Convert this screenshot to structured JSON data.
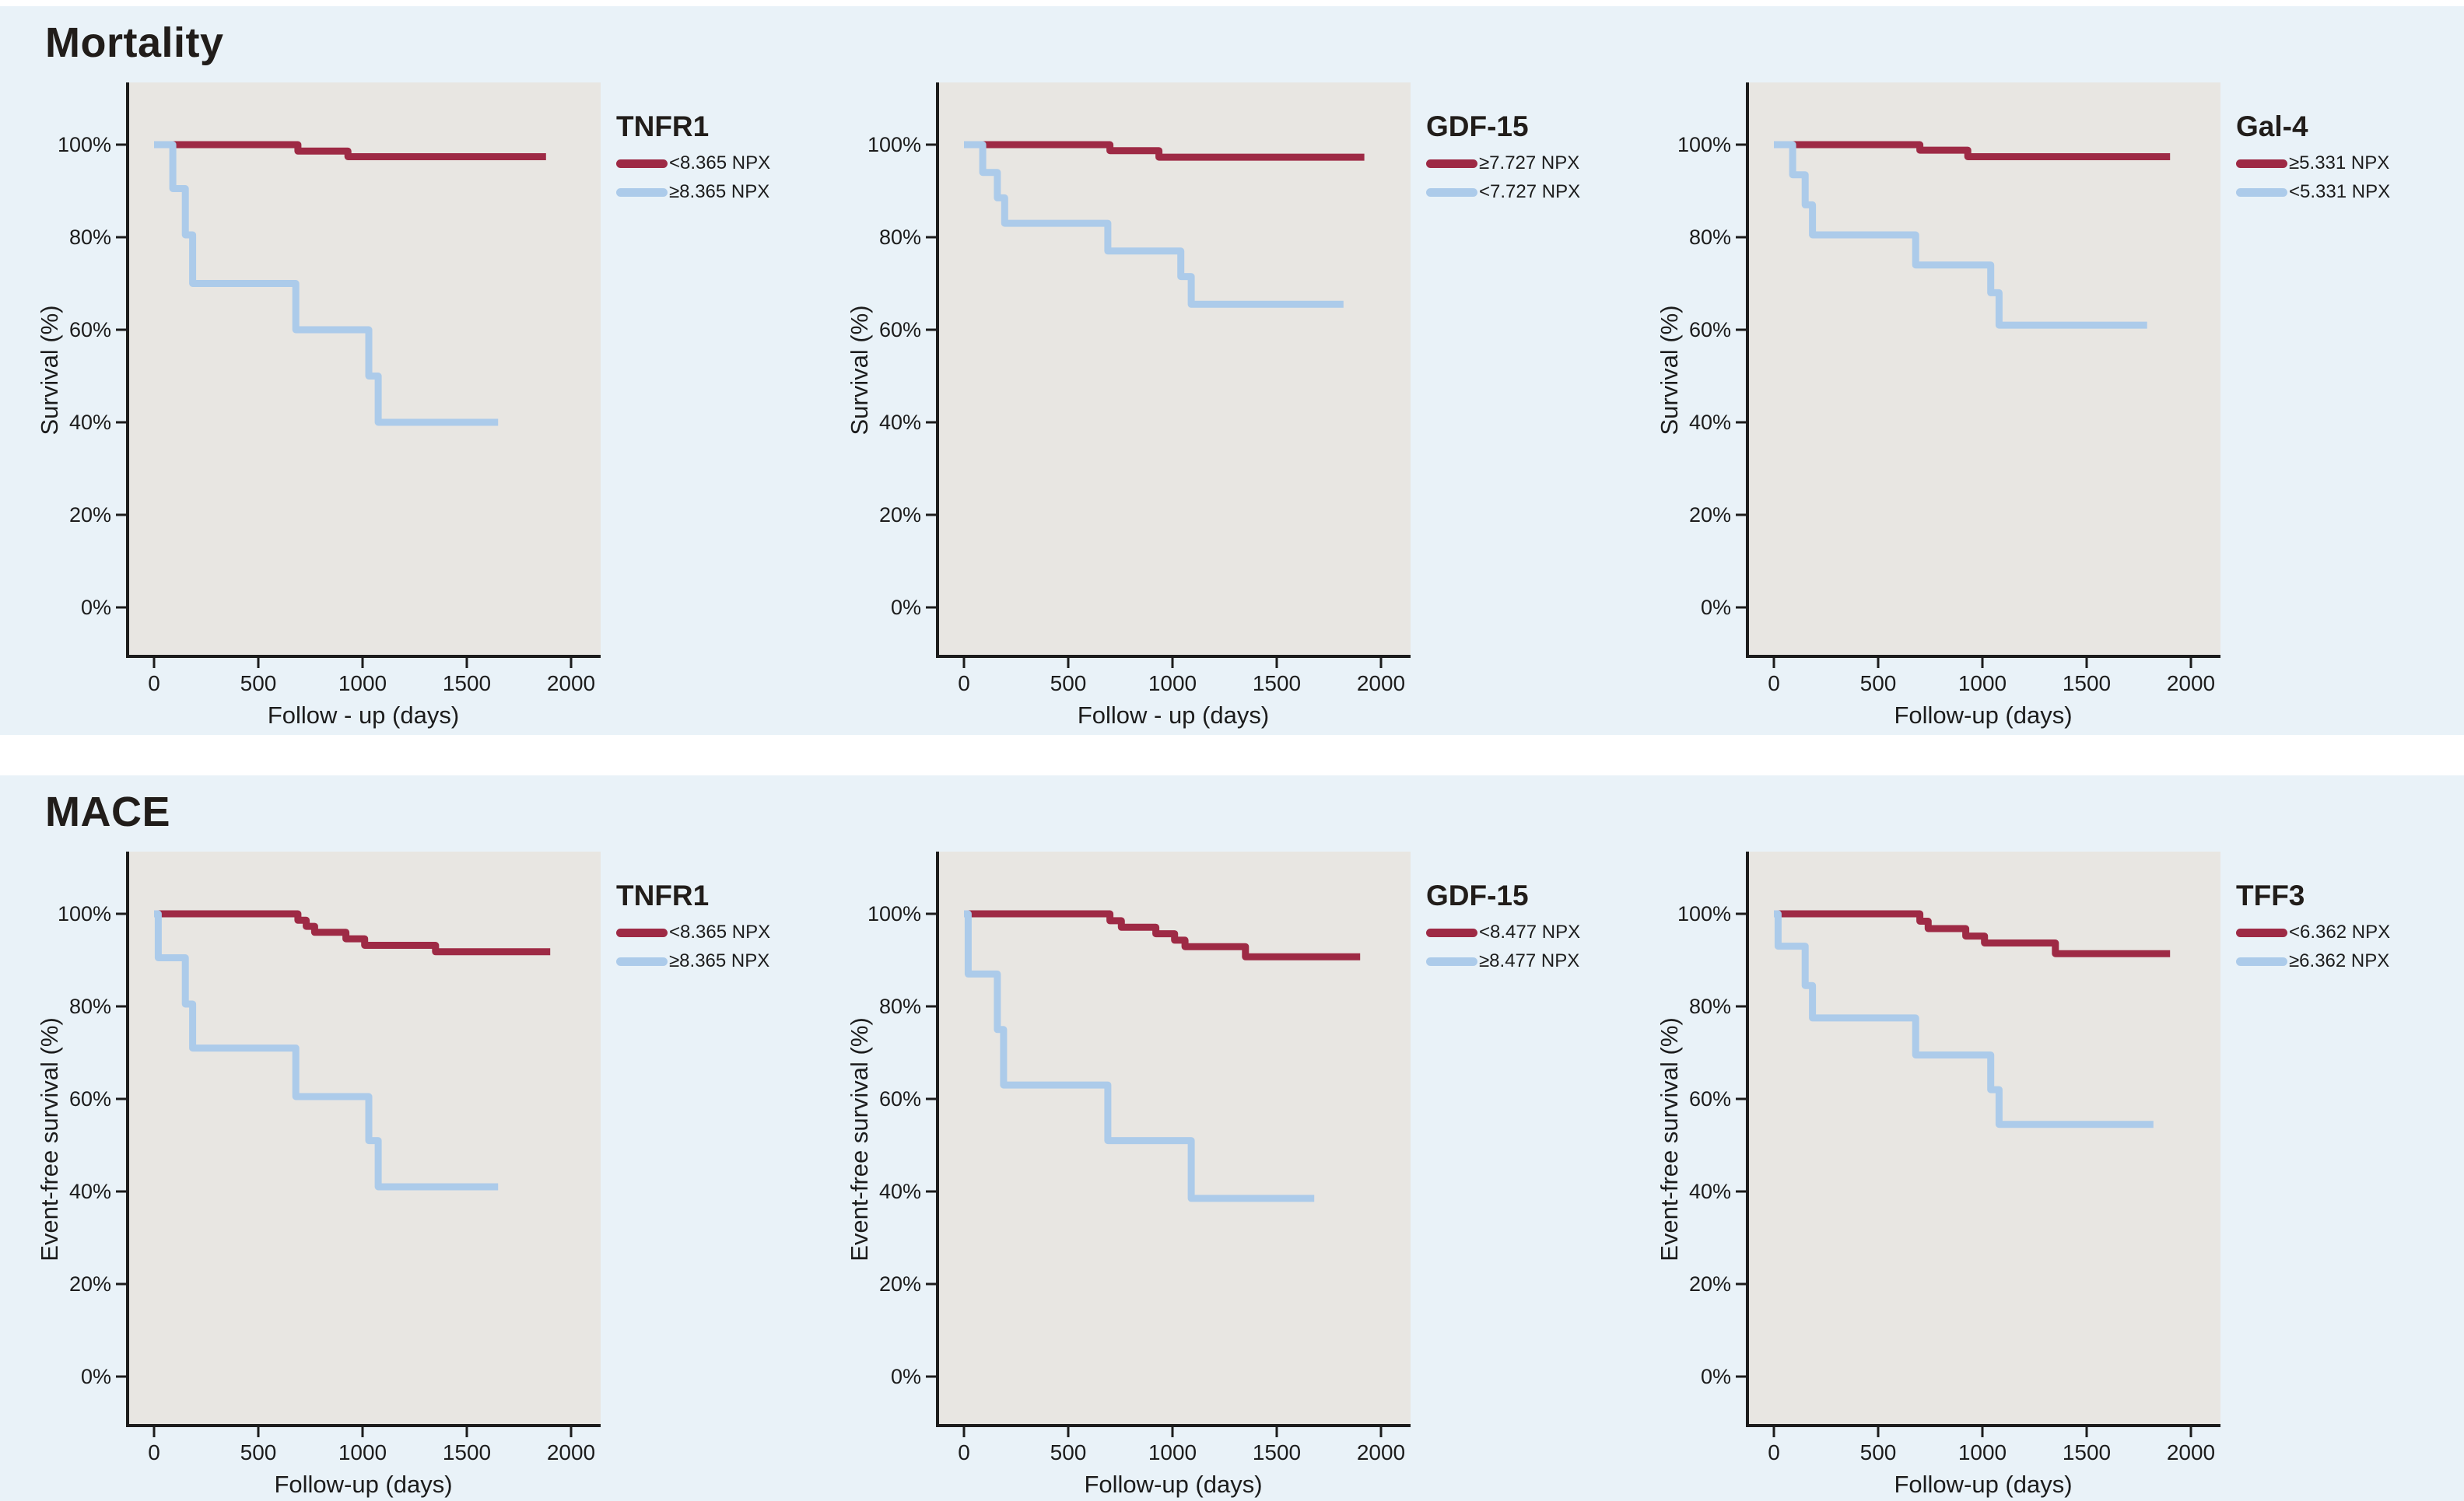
{
  "page": {
    "background": "#ffffff",
    "panel_background": "#e9f2f8"
  },
  "colors": {
    "red": "#9e2a45",
    "blue": "#accbea",
    "plot_background": "#e8e6e2",
    "axis": "#1c1c1c",
    "text": "#1c1c1c"
  },
  "sections": [
    {
      "title": "Mortality",
      "ylabel": "Survival (%)",
      "chart_ids": [
        0,
        1,
        2
      ]
    },
    {
      "title": "MACE",
      "ylabel": "Event-free survival (%)",
      "chart_ids": [
        3,
        4,
        5
      ]
    }
  ],
  "chart_data": [
    {
      "type": "line",
      "subtype": "kaplan-meier-step",
      "section": "Mortality",
      "title": "TNFR1",
      "xlabel": "Follow - up (days)",
      "ylabel": "Survival (%)",
      "xlim": [
        0,
        2000
      ],
      "ylim": [
        0,
        100
      ],
      "grid": false,
      "legend_position": "top-right",
      "x_ticks": [
        "0",
        "500",
        "1000",
        "1500",
        "2000"
      ],
      "y_ticks": [
        {
          "value": 100,
          "label": "100%"
        },
        {
          "value": 80,
          "label": "80%"
        },
        {
          "value": 60,
          "label": "60%"
        },
        {
          "value": 40,
          "label": "40%"
        },
        {
          "value": 20,
          "label": "20%"
        },
        {
          "value": 0,
          "label": "0%"
        }
      ],
      "series": [
        {
          "name": "<8.365 NPX",
          "color_key": "red",
          "points": [
            [
              0,
              100
            ],
            [
              690,
              100
            ],
            [
              690,
              98.6
            ],
            [
              930,
              98.6
            ],
            [
              930,
              97.4
            ],
            [
              1880,
              97.4
            ]
          ]
        },
        {
          "name": "≥8.365 NPX",
          "color_key": "blue",
          "points": [
            [
              0,
              100
            ],
            [
              90,
              100
            ],
            [
              90,
              90.5
            ],
            [
              150,
              90.5
            ],
            [
              150,
              80.5
            ],
            [
              185,
              80.5
            ],
            [
              185,
              70
            ],
            [
              680,
              70
            ],
            [
              680,
              60
            ],
            [
              1030,
              60
            ],
            [
              1030,
              50
            ],
            [
              1075,
              50
            ],
            [
              1075,
              40
            ],
            [
              1650,
              40
            ]
          ]
        }
      ]
    },
    {
      "type": "line",
      "subtype": "kaplan-meier-step",
      "section": "Mortality",
      "title": "GDF-15",
      "xlabel": "Follow - up (days)",
      "ylabel": "Survival (%)",
      "xlim": [
        0,
        2000
      ],
      "ylim": [
        0,
        100
      ],
      "grid": false,
      "legend_position": "top-right",
      "x_ticks": [
        "0",
        "500",
        "1000",
        "1500",
        "2000"
      ],
      "y_ticks": [
        {
          "value": 100,
          "label": "100%"
        },
        {
          "value": 80,
          "label": "80%"
        },
        {
          "value": 60,
          "label": "60%"
        },
        {
          "value": 40,
          "label": "40%"
        },
        {
          "value": 20,
          "label": "20%"
        },
        {
          "value": 0,
          "label": "0%"
        }
      ],
      "series": [
        {
          "name": "≥7.727 NPX",
          "color_key": "red",
          "points": [
            [
              0,
              100
            ],
            [
              700,
              100
            ],
            [
              700,
              98.7
            ],
            [
              935,
              98.7
            ],
            [
              935,
              97.3
            ],
            [
              1920,
              97.3
            ]
          ]
        },
        {
          "name": "<7.727 NPX",
          "color_key": "blue",
          "points": [
            [
              0,
              100
            ],
            [
              90,
              100
            ],
            [
              90,
              94
            ],
            [
              160,
              94
            ],
            [
              160,
              88.5
            ],
            [
              195,
              88.5
            ],
            [
              195,
              83
            ],
            [
              690,
              83
            ],
            [
              690,
              77
            ],
            [
              1040,
              77
            ],
            [
              1040,
              71.5
            ],
            [
              1090,
              71.5
            ],
            [
              1090,
              65.5
            ],
            [
              1820,
              65.5
            ]
          ]
        }
      ]
    },
    {
      "type": "line",
      "subtype": "kaplan-meier-step",
      "section": "Mortality",
      "title": "Gal-4",
      "xlabel": "Follow-up (days)",
      "ylabel": "Survival (%)",
      "xlim": [
        0,
        2000
      ],
      "ylim": [
        0,
        100
      ],
      "grid": false,
      "legend_position": "top-right",
      "x_ticks": [
        "0",
        "500",
        "1000",
        "1500",
        "2000"
      ],
      "y_ticks": [
        {
          "value": 100,
          "label": "100%"
        },
        {
          "value": 80,
          "label": "80%"
        },
        {
          "value": 60,
          "label": "60%"
        },
        {
          "value": 40,
          "label": "40%"
        },
        {
          "value": 20,
          "label": "20%"
        },
        {
          "value": 0,
          "label": "0%"
        }
      ],
      "series": [
        {
          "name": "≥5.331 NPX",
          "color_key": "red",
          "points": [
            [
              0,
              100
            ],
            [
              700,
              100
            ],
            [
              700,
              98.8
            ],
            [
              930,
              98.8
            ],
            [
              930,
              97.4
            ],
            [
              1900,
              97.4
            ]
          ]
        },
        {
          "name": "<5.331 NPX",
          "color_key": "blue",
          "points": [
            [
              0,
              100
            ],
            [
              90,
              100
            ],
            [
              90,
              93.5
            ],
            [
              150,
              93.5
            ],
            [
              150,
              87
            ],
            [
              185,
              87
            ],
            [
              185,
              80.5
            ],
            [
              680,
              80.5
            ],
            [
              680,
              74
            ],
            [
              1040,
              74
            ],
            [
              1040,
              68
            ],
            [
              1080,
              68
            ],
            [
              1080,
              61
            ],
            [
              1790,
              61
            ]
          ]
        }
      ]
    },
    {
      "type": "line",
      "subtype": "kaplan-meier-step",
      "section": "MACE",
      "title": "TNFR1",
      "xlabel": "Follow-up (days)",
      "ylabel": "Event-free survival (%)",
      "xlim": [
        0,
        2000
      ],
      "ylim": [
        0,
        100
      ],
      "grid": false,
      "legend_position": "top-right",
      "x_ticks": [
        "0",
        "500",
        "1000",
        "1500",
        "2000"
      ],
      "y_ticks": [
        {
          "value": 100,
          "label": "100%"
        },
        {
          "value": 80,
          "label": "80%"
        },
        {
          "value": 60,
          "label": "60%"
        },
        {
          "value": 40,
          "label": "40%"
        },
        {
          "value": 20,
          "label": "20%"
        },
        {
          "value": 0,
          "label": "0%"
        }
      ],
      "series": [
        {
          "name": "<8.365 NPX",
          "color_key": "red",
          "points": [
            [
              0,
              100
            ],
            [
              690,
              100
            ],
            [
              690,
              98.6
            ],
            [
              730,
              98.6
            ],
            [
              730,
              97.3
            ],
            [
              770,
              97.3
            ],
            [
              770,
              96
            ],
            [
              920,
              96
            ],
            [
              920,
              94.6
            ],
            [
              1010,
              94.6
            ],
            [
              1010,
              93.2
            ],
            [
              1350,
              93.2
            ],
            [
              1350,
              91.8
            ],
            [
              1900,
              91.8
            ]
          ]
        },
        {
          "name": "≥8.365 NPX",
          "color_key": "blue",
          "points": [
            [
              0,
              100
            ],
            [
              20,
              100
            ],
            [
              20,
              90.5
            ],
            [
              150,
              90.5
            ],
            [
              150,
              80.5
            ],
            [
              185,
              80.5
            ],
            [
              185,
              71
            ],
            [
              680,
              71
            ],
            [
              680,
              60.5
            ],
            [
              1030,
              60.5
            ],
            [
              1030,
              51
            ],
            [
              1075,
              51
            ],
            [
              1075,
              41
            ],
            [
              1650,
              41
            ]
          ]
        }
      ]
    },
    {
      "type": "line",
      "subtype": "kaplan-meier-step",
      "section": "MACE",
      "title": "GDF-15",
      "xlabel": "Follow-up (days)",
      "ylabel": "Event-free survival (%)",
      "xlim": [
        0,
        2000
      ],
      "ylim": [
        0,
        100
      ],
      "grid": false,
      "legend_position": "top-right",
      "x_ticks": [
        "0",
        "500",
        "1000",
        "1500",
        "2000"
      ],
      "y_ticks": [
        {
          "value": 100,
          "label": "100%"
        },
        {
          "value": 80,
          "label": "80%"
        },
        {
          "value": 60,
          "label": "60%"
        },
        {
          "value": 40,
          "label": "40%"
        },
        {
          "value": 20,
          "label": "20%"
        },
        {
          "value": 0,
          "label": "0%"
        }
      ],
      "series": [
        {
          "name": "<8.477 NPX",
          "color_key": "red",
          "points": [
            [
              0,
              100
            ],
            [
              700,
              100
            ],
            [
              700,
              98.5
            ],
            [
              755,
              98.5
            ],
            [
              755,
              97.1
            ],
            [
              920,
              97.1
            ],
            [
              920,
              95.7
            ],
            [
              1010,
              95.7
            ],
            [
              1010,
              94.3
            ],
            [
              1060,
              94.3
            ],
            [
              1060,
              92.9
            ],
            [
              1350,
              92.9
            ],
            [
              1350,
              90.7
            ],
            [
              1900,
              90.7
            ]
          ]
        },
        {
          "name": "≥8.477 NPX",
          "color_key": "blue",
          "points": [
            [
              0,
              100
            ],
            [
              20,
              100
            ],
            [
              20,
              87
            ],
            [
              160,
              87
            ],
            [
              160,
              75
            ],
            [
              190,
              75
            ],
            [
              190,
              63
            ],
            [
              690,
              63
            ],
            [
              690,
              51
            ],
            [
              1090,
              51
            ],
            [
              1090,
              38.5
            ],
            [
              1680,
              38.5
            ]
          ]
        }
      ]
    },
    {
      "type": "line",
      "subtype": "kaplan-meier-step",
      "section": "MACE",
      "title": "TFF3",
      "xlabel": "Follow-up (days)",
      "ylabel": "Event-free survival (%)",
      "xlim": [
        0,
        2000
      ],
      "ylim": [
        0,
        100
      ],
      "grid": false,
      "legend_position": "top-right",
      "x_ticks": [
        "0",
        "500",
        "1000",
        "1500",
        "2000"
      ],
      "y_ticks": [
        {
          "value": 100,
          "label": "100%"
        },
        {
          "value": 80,
          "label": "80%"
        },
        {
          "value": 60,
          "label": "60%"
        },
        {
          "value": 40,
          "label": "40%"
        },
        {
          "value": 20,
          "label": "20%"
        },
        {
          "value": 0,
          "label": "0%"
        }
      ],
      "series": [
        {
          "name": "<6.362 NPX",
          "color_key": "red",
          "points": [
            [
              0,
              100
            ],
            [
              700,
              100
            ],
            [
              700,
              98.4
            ],
            [
              740,
              98.4
            ],
            [
              740,
              96.8
            ],
            [
              920,
              96.8
            ],
            [
              920,
              95.2
            ],
            [
              1010,
              95.2
            ],
            [
              1010,
              93.7
            ],
            [
              1350,
              93.7
            ],
            [
              1350,
              91.4
            ],
            [
              1900,
              91.4
            ]
          ]
        },
        {
          "name": "≥6.362 NPX",
          "color_key": "blue",
          "points": [
            [
              0,
              100
            ],
            [
              20,
              100
            ],
            [
              20,
              93
            ],
            [
              150,
              93
            ],
            [
              150,
              84.5
            ],
            [
              185,
              84.5
            ],
            [
              185,
              77.5
            ],
            [
              680,
              77.5
            ],
            [
              680,
              69.5
            ],
            [
              1040,
              69.5
            ],
            [
              1040,
              62
            ],
            [
              1080,
              62
            ],
            [
              1080,
              54.5
            ],
            [
              1820,
              54.5
            ]
          ]
        }
      ]
    }
  ]
}
